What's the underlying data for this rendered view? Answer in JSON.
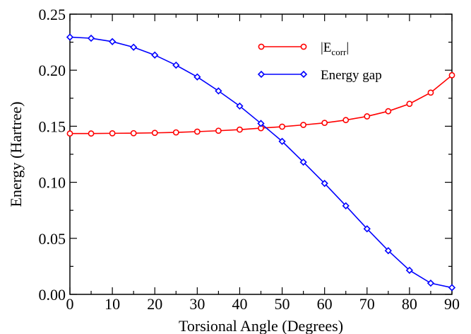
{
  "chart_data": {
    "type": "line",
    "xlabel": "Torsional Angle (Degrees)",
    "ylabel": "Energy (Hartree)",
    "xlim": [
      0,
      90
    ],
    "ylim": [
      0,
      0.25
    ],
    "xticks": [
      0,
      10,
      20,
      30,
      40,
      50,
      60,
      70,
      80,
      90
    ],
    "xtick_labels": [
      "0",
      "10",
      "20",
      "30",
      "40",
      "50",
      "60",
      "70",
      "80",
      "90"
    ],
    "yticks": [
      0,
      0.05,
      0.1,
      0.15,
      0.2,
      0.25
    ],
    "ytick_labels": [
      "0.00",
      "0.05",
      "0.10",
      "0.15",
      "0.20",
      "0.25"
    ],
    "grid": false,
    "legend_position": "top-right",
    "x": [
      0,
      5,
      10,
      15,
      20,
      25,
      30,
      35,
      40,
      45,
      50,
      55,
      60,
      65,
      70,
      75,
      80,
      85,
      90
    ],
    "series": [
      {
        "name": "|E",
        "name_sub": "corr",
        "name_suffix": "|",
        "color": "#ff0000",
        "marker": "circle",
        "values": [
          0.1435,
          0.1435,
          0.1437,
          0.1438,
          0.1441,
          0.1445,
          0.1452,
          0.146,
          0.147,
          0.1483,
          0.1496,
          0.1512,
          0.153,
          0.1555,
          0.1588,
          0.1634,
          0.17,
          0.18,
          0.1955
        ]
      },
      {
        "name": "Energy gap",
        "color": "#0000ff",
        "marker": "diamond",
        "values": [
          0.2295,
          0.2285,
          0.2255,
          0.2205,
          0.2135,
          0.2045,
          0.194,
          0.1815,
          0.168,
          0.1525,
          0.1365,
          0.118,
          0.099,
          0.079,
          0.0585,
          0.039,
          0.0215,
          0.01,
          0.006
        ]
      }
    ]
  }
}
